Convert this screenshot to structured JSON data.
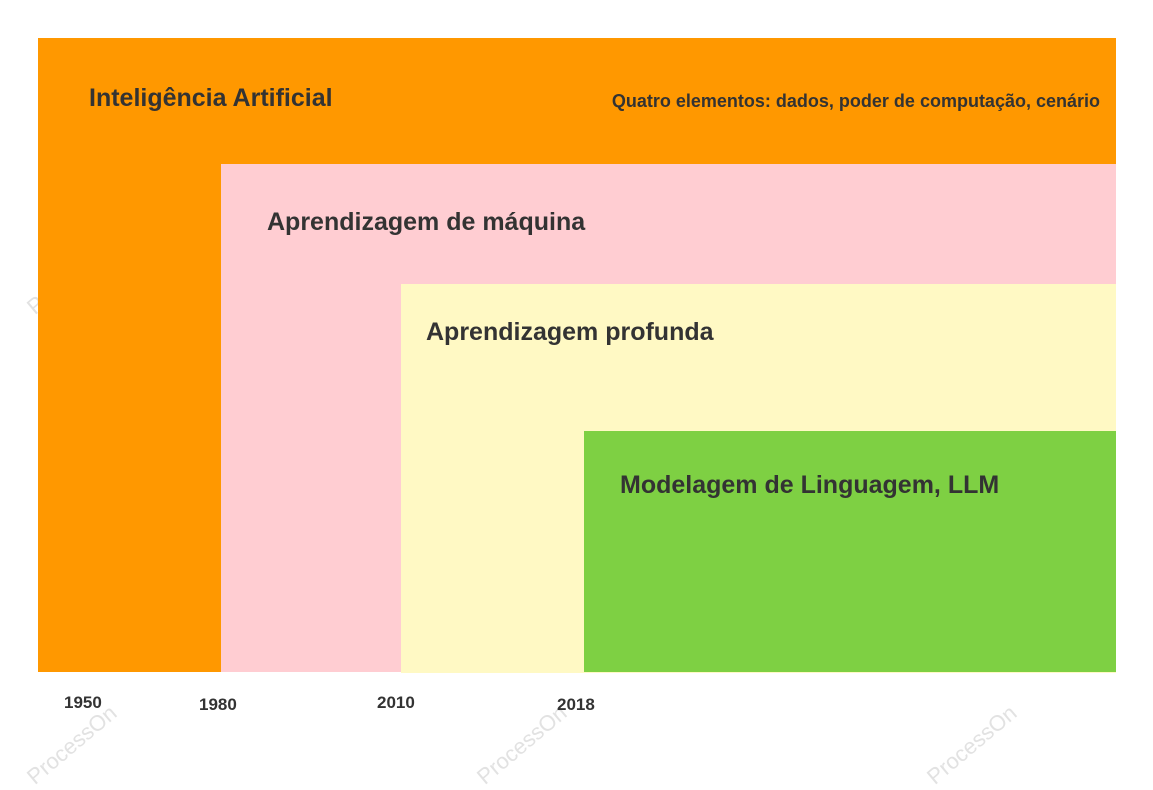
{
  "colors": {
    "artificial_intelligence": "#FF9800",
    "machine_learning": "#FFCDD2",
    "deep_learning": "#FFF9C4",
    "language_modeling": "#7ED043",
    "text": "#333333"
  },
  "layers": {
    "artificial_intelligence": {
      "label": "Inteligência Artificial",
      "note": "Quatro elementos: dados, poder de computação, cenário"
    },
    "machine_learning": {
      "label": "Aprendizagem de máquina"
    },
    "deep_learning": {
      "label": "Aprendizagem profunda"
    },
    "language_modeling": {
      "label": "Modelagem de Linguagem, LLM"
    }
  },
  "timeline": [
    "1950",
    "1980",
    "2010",
    "2018"
  ],
  "watermark": "ProcessOn"
}
